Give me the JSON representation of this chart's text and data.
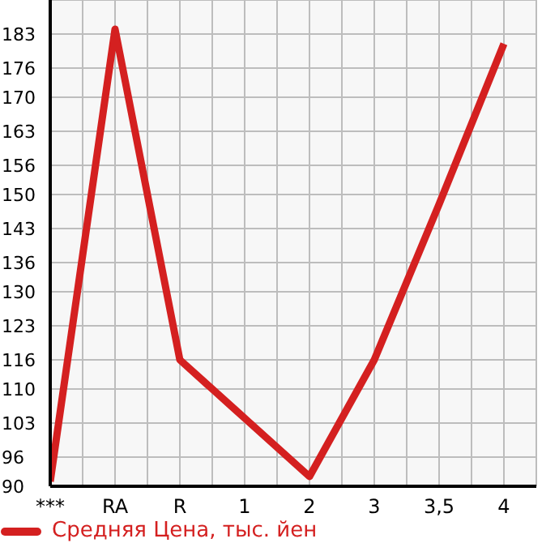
{
  "chart_data": {
    "type": "line",
    "categories": [
      "***",
      "RA",
      "R",
      "1",
      "2",
      "3",
      "3,5",
      "4"
    ],
    "series": [
      {
        "name": "Средняя Цена, тыс. йен",
        "color": "#d42020",
        "values": [
          91,
          184,
          116,
          104,
          92,
          116,
          148,
          181
        ]
      }
    ],
    "ylim": [
      90,
      190
    ],
    "yticks": [
      90,
      96,
      103,
      110,
      116,
      123,
      130,
      136,
      143,
      150,
      156,
      163,
      170,
      176,
      183
    ],
    "grid": true,
    "legend": "bottom",
    "marker": "none"
  }
}
